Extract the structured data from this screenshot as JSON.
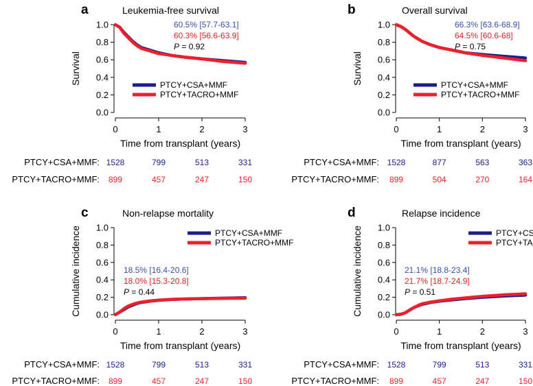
{
  "colors": {
    "csa": "#1c1c8c",
    "tacro": "#f0202a",
    "csa_stat": "#3a4fa8",
    "tacro_stat": "#e0231f"
  },
  "chart_data": [
    {
      "id": "a",
      "type": "line",
      "letter": "a",
      "title": "Leukemia-free survival",
      "ylabel": "Survival",
      "xlabel": "Time from transplant (years)",
      "xlim": [
        0,
        3
      ],
      "ylim": [
        0,
        1
      ],
      "xticks": [
        "0",
        "1",
        "2",
        "3"
      ],
      "yticks": [
        "0.0",
        "0.2",
        "0.4",
        "0.6",
        "0.8",
        "1.0"
      ],
      "legend_position": "center",
      "stats_position": "top-right",
      "series": [
        {
          "name": "PTCY+CSA+MMF",
          "key": "csa",
          "x": [
            0,
            0.1,
            0.2,
            0.3,
            0.4,
            0.5,
            0.6,
            0.8,
            1.0,
            1.3,
            1.6,
            2.0,
            2.5,
            3.0
          ],
          "y": [
            1.0,
            0.97,
            0.91,
            0.86,
            0.81,
            0.77,
            0.74,
            0.71,
            0.68,
            0.65,
            0.63,
            0.61,
            0.59,
            0.57
          ]
        },
        {
          "name": "PTCY+TACRO+MMF",
          "key": "tacro",
          "x": [
            0,
            0.1,
            0.2,
            0.3,
            0.4,
            0.5,
            0.6,
            0.8,
            1.0,
            1.3,
            1.6,
            2.0,
            2.5,
            3.0
          ],
          "y": [
            1.0,
            0.97,
            0.9,
            0.85,
            0.8,
            0.76,
            0.73,
            0.7,
            0.67,
            0.65,
            0.63,
            0.61,
            0.58,
            0.56
          ]
        }
      ],
      "stats": {
        "csa": "60.5% [57.7-63.1]",
        "tacro": "60.3% [56.6-63.9]",
        "p_label": "P",
        "p_value": " = 0.92"
      },
      "risk_table": {
        "csa_label": "PTCY+CSA+MMF:",
        "csa": [
          "1528",
          "799",
          "513",
          "331"
        ],
        "tacro_label": "PTCY+TACRO+MMF:",
        "tacro": [
          "899",
          "457",
          "247",
          "150"
        ]
      }
    },
    {
      "id": "b",
      "type": "line",
      "letter": "b",
      "title": "Overall survival",
      "ylabel": "Survival",
      "xlabel": "Time from transplant (years)",
      "xlim": [
        0,
        3
      ],
      "ylim": [
        0,
        1
      ],
      "xticks": [
        "0",
        "1",
        "2",
        "3"
      ],
      "yticks": [
        "0.0",
        "0.2",
        "0.4",
        "0.6",
        "0.8",
        "1.0"
      ],
      "legend_position": "center",
      "stats_position": "top-right",
      "series": [
        {
          "name": "PTCY+CSA+MMF",
          "key": "csa",
          "x": [
            0,
            0.1,
            0.2,
            0.3,
            0.4,
            0.5,
            0.6,
            0.8,
            1.0,
            1.3,
            1.6,
            2.0,
            2.5,
            3.0
          ],
          "y": [
            1.0,
            0.98,
            0.95,
            0.91,
            0.87,
            0.84,
            0.81,
            0.77,
            0.74,
            0.71,
            0.68,
            0.66,
            0.64,
            0.62
          ]
        },
        {
          "name": "PTCY+TACRO+MMF",
          "key": "tacro",
          "x": [
            0,
            0.1,
            0.2,
            0.3,
            0.4,
            0.5,
            0.6,
            0.8,
            1.0,
            1.3,
            1.6,
            2.0,
            2.5,
            3.0
          ],
          "y": [
            1.0,
            0.98,
            0.95,
            0.91,
            0.87,
            0.84,
            0.81,
            0.77,
            0.74,
            0.71,
            0.68,
            0.65,
            0.62,
            0.59
          ]
        }
      ],
      "stats": {
        "csa": "66.3% [63.6-68.9]",
        "tacro": "64.5% [60.6-68]",
        "p_label": "P",
        "p_value": " = 0.75"
      },
      "risk_table": {
        "csa_label": "PTCY+CSA+MMF:",
        "csa": [
          "1528",
          "877",
          "563",
          "363"
        ],
        "tacro_label": "PTCY+TACRO+MMF:",
        "tacro": [
          "899",
          "504",
          "270",
          "164"
        ]
      }
    },
    {
      "id": "c",
      "type": "line",
      "letter": "c",
      "title": "Non-relapse mortality",
      "ylabel": "Cumulative incidence",
      "xlabel": "Time from transplant (years)",
      "xlim": [
        0,
        3
      ],
      "ylim": [
        0,
        1
      ],
      "xticks": [
        "0",
        "1",
        "2",
        "3"
      ],
      "yticks": [
        "0.0",
        "0.2",
        "0.4",
        "0.6",
        "0.8",
        "1.0"
      ],
      "legend_position": "top-right",
      "stats_position": "center-left",
      "series": [
        {
          "name": "PTCY+CSA+MMF",
          "key": "csa",
          "x": [
            0,
            0.1,
            0.2,
            0.3,
            0.4,
            0.5,
            0.6,
            0.8,
            1.0,
            1.3,
            1.6,
            2.0,
            2.5,
            3.0
          ],
          "y": [
            0,
            0.03,
            0.06,
            0.09,
            0.11,
            0.13,
            0.14,
            0.155,
            0.165,
            0.175,
            0.18,
            0.185,
            0.19,
            0.195
          ]
        },
        {
          "name": "PTCY+TACRO+MMF",
          "key": "tacro",
          "x": [
            0,
            0.1,
            0.2,
            0.3,
            0.4,
            0.5,
            0.6,
            0.8,
            1.0,
            1.3,
            1.6,
            2.0,
            2.5,
            3.0
          ],
          "y": [
            0,
            0.03,
            0.07,
            0.1,
            0.12,
            0.135,
            0.145,
            0.158,
            0.167,
            0.176,
            0.18,
            0.184,
            0.188,
            0.19
          ]
        }
      ],
      "stats": {
        "csa": "18.5% [16.4-20.6]",
        "tacro": "18.0% [15.3-20.8]",
        "p_label": "P",
        "p_value": " = 0.44"
      },
      "risk_table": {
        "csa_label": "PTCY+CSA+MMF:",
        "csa": [
          "1528",
          "799",
          "513",
          "331"
        ],
        "tacro_label": "PTCY+TACRO+MMF:",
        "tacro": [
          "899",
          "457",
          "247",
          "150"
        ]
      }
    },
    {
      "id": "d",
      "type": "line",
      "letter": "d",
      "title": "Relapse incidence",
      "ylabel": "Cumulative incidence",
      "xlabel": "Time from transplant (years)",
      "xlim": [
        0,
        3
      ],
      "ylim": [
        0,
        1
      ],
      "xticks": [
        "0",
        "1",
        "2",
        "3"
      ],
      "yticks": [
        "0.0",
        "0.2",
        "0.4",
        "0.6",
        "0.8",
        "1.0"
      ],
      "legend_position": "top-right",
      "stats_position": "center-left",
      "series": [
        {
          "name": "PTCY+CSA+MMF",
          "key": "csa",
          "x": [
            0,
            0.1,
            0.2,
            0.3,
            0.4,
            0.5,
            0.6,
            0.8,
            1.0,
            1.3,
            1.6,
            2.0,
            2.5,
            3.0
          ],
          "y": [
            0,
            0.005,
            0.02,
            0.05,
            0.08,
            0.1,
            0.12,
            0.14,
            0.155,
            0.17,
            0.185,
            0.2,
            0.215,
            0.225
          ]
        },
        {
          "name": "PTCY+TACRO+MMF",
          "key": "tacro",
          "x": [
            0,
            0.1,
            0.2,
            0.3,
            0.4,
            0.5,
            0.6,
            0.8,
            1.0,
            1.3,
            1.6,
            2.0,
            2.5,
            3.0
          ],
          "y": [
            0,
            0.005,
            0.02,
            0.05,
            0.08,
            0.105,
            0.125,
            0.145,
            0.16,
            0.178,
            0.193,
            0.21,
            0.228,
            0.24
          ]
        }
      ],
      "stats": {
        "csa": "21.1% [18.8-23.4]",
        "tacro": "21.7% [18.7-24.9]",
        "p_label": "P",
        "p_value": " = 0.51"
      },
      "risk_table": {
        "csa_label": "PTCY+CSA+MMF:",
        "csa": [
          "1528",
          "799",
          "513",
          "331"
        ],
        "tacro_label": "PTCY+TACRO+MMF:",
        "tacro": [
          "899",
          "457",
          "247",
          "150"
        ]
      }
    }
  ]
}
